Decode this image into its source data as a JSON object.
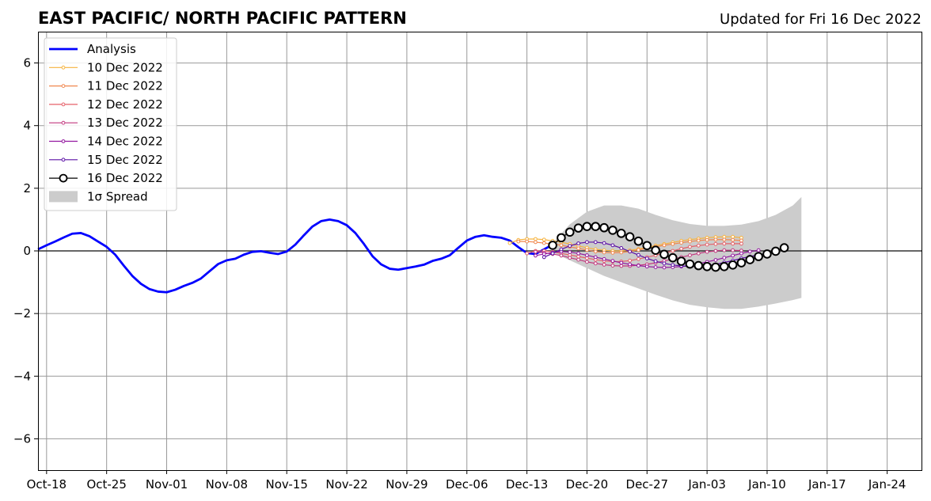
{
  "chart_data": {
    "type": "line",
    "title": "EAST PACIFIC/ NORTH PACIFIC PATTERN",
    "subtitle": "Updated for Fri 16 Dec 2022",
    "xlabel": "",
    "ylabel": "",
    "x_ticks": [
      "Oct-18",
      "Oct-25",
      "Nov-01",
      "Nov-08",
      "Nov-15",
      "Nov-22",
      "Nov-29",
      "Dec-06",
      "Dec-13",
      "Dec-20",
      "Dec-27",
      "Jan-03",
      "Jan-10",
      "Jan-17",
      "Jan-24"
    ],
    "x_tick_dates": [
      "2022-10-18",
      "2022-10-25",
      "2022-11-01",
      "2022-11-08",
      "2022-11-15",
      "2022-11-22",
      "2022-11-29",
      "2022-12-06",
      "2022-12-13",
      "2022-12-20",
      "2022-12-27",
      "2023-01-03",
      "2023-01-10",
      "2023-01-17",
      "2023-01-24"
    ],
    "y_ticks": [
      -6,
      -4,
      -2,
      0,
      2,
      4,
      6
    ],
    "xlim": [
      "2022-10-17",
      "2023-01-28"
    ],
    "ylim": [
      -7,
      7
    ],
    "grid": true,
    "legend_position": "top-left",
    "spread": {
      "name": "1σ Spread",
      "color": "#cccccc",
      "points": [
        {
          "x": "2022-12-16",
          "lower": -0.05,
          "upper": 0.25
        },
        {
          "x": "2022-12-18",
          "lower": -0.3,
          "upper": 0.85
        },
        {
          "x": "2022-12-20",
          "lower": -0.55,
          "upper": 1.25
        },
        {
          "x": "2022-12-22",
          "lower": -0.8,
          "upper": 1.45
        },
        {
          "x": "2022-12-24",
          "lower": -1.0,
          "upper": 1.45
        },
        {
          "x": "2022-12-26",
          "lower": -1.2,
          "upper": 1.35
        },
        {
          "x": "2022-12-28",
          "lower": -1.4,
          "upper": 1.15
        },
        {
          "x": "2022-12-30",
          "lower": -1.58,
          "upper": 0.98
        },
        {
          "x": "2023-01-01",
          "lower": -1.72,
          "upper": 0.86
        },
        {
          "x": "2023-01-03",
          "lower": -1.8,
          "upper": 0.8
        },
        {
          "x": "2023-01-05",
          "lower": -1.85,
          "upper": 0.8
        },
        {
          "x": "2023-01-07",
          "lower": -1.85,
          "upper": 0.84
        },
        {
          "x": "2023-01-09",
          "lower": -1.78,
          "upper": 0.95
        },
        {
          "x": "2023-01-11",
          "lower": -1.68,
          "upper": 1.15
        },
        {
          "x": "2023-01-13",
          "lower": -1.57,
          "upper": 1.45
        },
        {
          "x": "2023-01-14",
          "lower": -1.5,
          "upper": 1.72
        }
      ]
    },
    "series": [
      {
        "name": "Analysis",
        "color": "#0000ff",
        "marker": "none",
        "x": [
          "2022-10-17",
          "2022-10-18",
          "2022-10-19",
          "2022-10-20",
          "2022-10-21",
          "2022-10-22",
          "2022-10-23",
          "2022-10-24",
          "2022-10-25",
          "2022-10-26",
          "2022-10-27",
          "2022-10-28",
          "2022-10-29",
          "2022-10-30",
          "2022-10-31",
          "2022-11-01",
          "2022-11-02",
          "2022-11-03",
          "2022-11-04",
          "2022-11-05",
          "2022-11-06",
          "2022-11-07",
          "2022-11-08",
          "2022-11-09",
          "2022-11-10",
          "2022-11-11",
          "2022-11-12",
          "2022-11-13",
          "2022-11-14",
          "2022-11-15",
          "2022-11-16",
          "2022-11-17",
          "2022-11-18",
          "2022-11-19",
          "2022-11-20",
          "2022-11-21",
          "2022-11-22",
          "2022-11-23",
          "2022-11-24",
          "2022-11-25",
          "2022-11-26",
          "2022-11-27",
          "2022-11-28",
          "2022-11-29",
          "2022-11-30",
          "2022-12-01",
          "2022-12-02",
          "2022-12-03",
          "2022-12-04",
          "2022-12-05",
          "2022-12-06",
          "2022-12-07",
          "2022-12-08",
          "2022-12-09",
          "2022-12-10",
          "2022-12-11",
          "2022-12-12",
          "2022-12-13",
          "2022-12-14",
          "2022-12-15",
          "2022-12-16"
        ],
        "values": [
          0.05,
          0.18,
          0.3,
          0.43,
          0.55,
          0.57,
          0.47,
          0.3,
          0.13,
          -0.12,
          -0.47,
          -0.8,
          -1.05,
          -1.22,
          -1.3,
          -1.32,
          -1.24,
          -1.12,
          -1.02,
          -0.88,
          -0.65,
          -0.42,
          -0.3,
          -0.25,
          -0.12,
          -0.03,
          -0.01,
          -0.06,
          -0.1,
          -0.02,
          0.2,
          0.5,
          0.78,
          0.95,
          1.0,
          0.95,
          0.82,
          0.57,
          0.22,
          -0.17,
          -0.43,
          -0.57,
          -0.6,
          -0.55,
          -0.5,
          -0.44,
          -0.32,
          -0.25,
          -0.14,
          0.1,
          0.33,
          0.45,
          0.5,
          0.45,
          0.42,
          0.33,
          0.12,
          -0.07,
          -0.1,
          0.05,
          0.2
        ]
      },
      {
        "name": "10 Dec 2022",
        "color": "#f6b33e",
        "marker": "dot",
        "x_start": "2022-12-11",
        "values": [
          0.25,
          0.35,
          0.38,
          0.38,
          0.36,
          0.32,
          0.28,
          0.22,
          0.16,
          0.1,
          0.05,
          0.02,
          0.0,
          0.0,
          0.02,
          0.06,
          0.11,
          0.17,
          0.22,
          0.27,
          0.32,
          0.36,
          0.39,
          0.42,
          0.44,
          0.45,
          0.45,
          0.42
        ]
      },
      {
        "name": "11 Dec 2022",
        "color": "#f0874f",
        "marker": "dot",
        "x_start": "2022-12-12",
        "values": [
          0.3,
          0.3,
          0.28,
          0.25,
          0.22,
          0.18,
          0.13,
          0.08,
          0.03,
          -0.02,
          -0.05,
          -0.06,
          -0.05,
          -0.02,
          0.03,
          0.08,
          0.13,
          0.18,
          0.22,
          0.26,
          0.3,
          0.33,
          0.35,
          0.36,
          0.36,
          0.35,
          0.33
        ]
      },
      {
        "name": "12 Dec 2022",
        "color": "#e5616a",
        "marker": "dot",
        "x_start": "2022-12-13",
        "values": [
          -0.08,
          0.0,
          0.0,
          -0.03,
          -0.08,
          -0.13,
          -0.18,
          -0.23,
          -0.28,
          -0.32,
          -0.34,
          -0.34,
          -0.31,
          -0.26,
          -0.2,
          -0.14,
          -0.07,
          0.0,
          0.07,
          0.13,
          0.17,
          0.2,
          0.22,
          0.23,
          0.23,
          0.23
        ]
      },
      {
        "name": "13 Dec 2022",
        "color": "#c2377e",
        "marker": "dot",
        "x_start": "2022-12-14",
        "values": [
          -0.03,
          -0.06,
          -0.1,
          -0.15,
          -0.22,
          -0.28,
          -0.35,
          -0.4,
          -0.44,
          -0.47,
          -0.48,
          -0.48,
          -0.46,
          -0.43,
          -0.38,
          -0.32,
          -0.26,
          -0.2,
          -0.14,
          -0.08,
          -0.03,
          0.0,
          0.02,
          0.02,
          0.01
        ]
      },
      {
        "name": "14 Dec 2022",
        "color": "#9317a0",
        "marker": "dot",
        "x_start": "2022-12-14",
        "values": [
          -0.15,
          -0.1,
          -0.05,
          -0.02,
          -0.04,
          -0.08,
          -0.14,
          -0.2,
          -0.26,
          -0.32,
          -0.38,
          -0.43,
          -0.47,
          -0.5,
          -0.52,
          -0.53,
          -0.52,
          -0.5,
          -0.46,
          -0.41,
          -0.35,
          -0.29,
          -0.22,
          -0.15,
          -0.08,
          -0.02,
          0.02
        ]
      },
      {
        "name": "15 Dec 2022",
        "color": "#5c11a6",
        "marker": "dot",
        "x_start": "2022-12-15",
        "values": [
          -0.2,
          -0.08,
          0.05,
          0.16,
          0.24,
          0.28,
          0.28,
          0.25,
          0.18,
          0.09,
          -0.02,
          -0.13,
          -0.24,
          -0.33,
          -0.4,
          -0.45,
          -0.48,
          -0.5,
          -0.49,
          -0.47,
          -0.43,
          -0.37,
          -0.31,
          -0.24,
          -0.18,
          -0.13,
          -0.08
        ]
      },
      {
        "name": "16 Dec 2022",
        "color": "#000000",
        "marker": "circle",
        "x_start": "2022-12-16",
        "values": [
          0.18,
          0.42,
          0.6,
          0.73,
          0.78,
          0.78,
          0.74,
          0.66,
          0.56,
          0.45,
          0.31,
          0.17,
          0.02,
          -0.11,
          -0.22,
          -0.33,
          -0.42,
          -0.47,
          -0.5,
          -0.52,
          -0.5,
          -0.45,
          -0.38,
          -0.28,
          -0.18,
          -0.1,
          -0.01,
          0.1
        ]
      }
    ]
  },
  "legend": {
    "items": [
      {
        "label": "Analysis"
      },
      {
        "label": "10 Dec 2022"
      },
      {
        "label": "11 Dec 2022"
      },
      {
        "label": "12 Dec 2022"
      },
      {
        "label": "13 Dec 2022"
      },
      {
        "label": "14 Dec 2022"
      },
      {
        "label": "15 Dec 2022"
      },
      {
        "label": "16 Dec 2022"
      },
      {
        "label": "1σ Spread"
      }
    ]
  }
}
